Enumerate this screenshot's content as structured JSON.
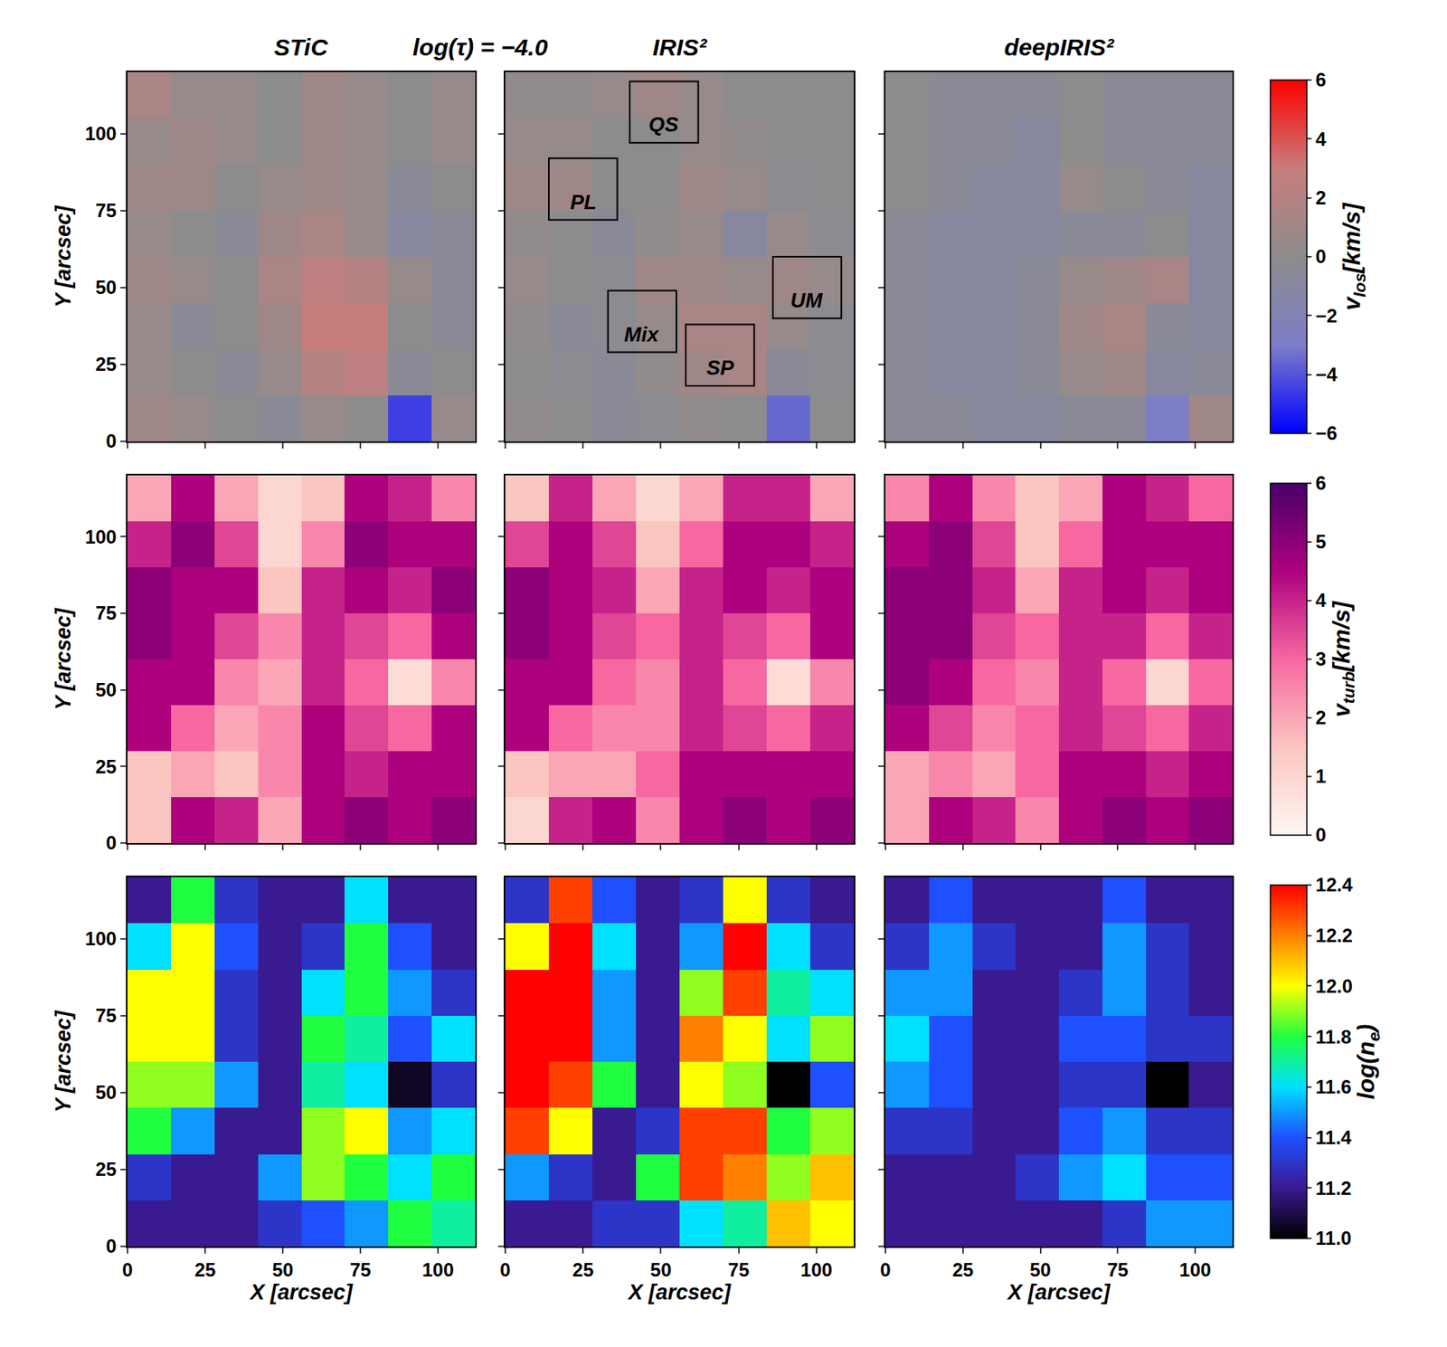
{
  "chart_data": {
    "type": "heatmap",
    "column_titles": [
      "STiC",
      "IRIS²",
      "deepIRIS²"
    ],
    "subtitle": "log(τ) = −4.0",
    "xlabel": "X [arcsec]",
    "ylabel": "Y [arcsec]",
    "xlim": [
      0,
      112
    ],
    "ylim": [
      0,
      120
    ],
    "xticks": [
      0,
      25,
      50,
      75,
      100
    ],
    "yticks": [
      0,
      25,
      50,
      75,
      100
    ],
    "x_edges": [
      0,
      14,
      28,
      42,
      56,
      70,
      84,
      98,
      112
    ],
    "y_edges": [
      0,
      15,
      30,
      45,
      60,
      75,
      90,
      105,
      120
    ],
    "rows": [
      {
        "colorbar_title": {
          "main": "v",
          "sub": "los",
          "rest": "[km/s]"
        },
        "colorbar_range": [
          -6,
          6
        ],
        "colorbar_ticks": [
          {
            "value": -6,
            "label": "−6"
          },
          {
            "value": -4,
            "label": "−4"
          },
          {
            "value": -2,
            "label": "−2"
          },
          0,
          2,
          4,
          6
        ],
        "colors": [
          "#0000ff",
          "#7d7dc8",
          "#8c8c8c",
          "#c87d7d",
          "#ff0000"
        ],
        "panels": [
          [
            [
              1.0,
              0.5,
              0.0,
              -0.5,
              0.5,
              0.0,
              -4.5,
              0.5
            ],
            [
              0.5,
              0.0,
              -0.5,
              0.5,
              2.0,
              2.5,
              -0.5,
              0.0
            ],
            [
              0.5,
              -0.5,
              0.0,
              1.0,
              3.0,
              3.0,
              0.0,
              -0.5
            ],
            [
              1.0,
              0.5,
              0.0,
              1.5,
              2.5,
              2.0,
              0.5,
              -0.5
            ],
            [
              0.5,
              0.0,
              -0.5,
              1.0,
              1.5,
              0.5,
              -1.0,
              -0.5
            ],
            [
              1.0,
              1.0,
              0.0,
              0.5,
              1.0,
              0.5,
              -0.5,
              0.0
            ],
            [
              0.5,
              1.0,
              0.5,
              0.0,
              1.0,
              0.5,
              0.0,
              0.5
            ],
            [
              1.5,
              0.5,
              0.5,
              0.0,
              1.0,
              0.5,
              0.0,
              0.5
            ]
          ],
          [
            [
              0.3,
              0.0,
              -0.5,
              -0.3,
              0.3,
              0.0,
              -3.5,
              0.0
            ],
            [
              0.0,
              -0.3,
              -0.5,
              0.3,
              1.0,
              1.5,
              -0.5,
              -0.3
            ],
            [
              0.3,
              -0.5,
              -0.3,
              0.5,
              1.5,
              1.5,
              0.5,
              -0.3
            ],
            [
              0.5,
              0.0,
              -0.3,
              1.0,
              1.0,
              0.5,
              1.0,
              0.5
            ],
            [
              0.3,
              0.0,
              -0.5,
              0.3,
              0.5,
              -1.0,
              0.5,
              -0.3
            ],
            [
              1.0,
              1.0,
              0.0,
              0.0,
              1.0,
              0.5,
              -0.3,
              0.0
            ],
            [
              0.5,
              0.5,
              0.0,
              0.0,
              0.5,
              0.3,
              0.0,
              0.0
            ],
            [
              0.3,
              0.3,
              0.5,
              1.0,
              0.5,
              0.0,
              0.0,
              0.0
            ]
          ],
          [
            [
              -0.5,
              -0.5,
              -1.0,
              -1.0,
              -0.5,
              -0.5,
              -3.0,
              1.0
            ],
            [
              -0.5,
              -1.0,
              -1.0,
              -0.5,
              0.5,
              1.0,
              -1.0,
              -0.5
            ],
            [
              -0.5,
              -1.0,
              -1.0,
              -0.5,
              1.0,
              1.5,
              -0.5,
              -1.0
            ],
            [
              -0.5,
              -1.0,
              -1.0,
              -0.5,
              0.5,
              1.0,
              1.5,
              -1.0
            ],
            [
              -0.5,
              -1.0,
              -1.0,
              -1.0,
              -0.5,
              -0.5,
              0.0,
              -1.0
            ],
            [
              0.0,
              -0.5,
              -1.0,
              -1.0,
              0.5,
              0.0,
              -0.5,
              -1.0
            ],
            [
              0.0,
              -0.5,
              -0.5,
              -1.0,
              0.0,
              -0.5,
              -0.5,
              -0.5
            ],
            [
              0.0,
              -0.5,
              -0.5,
              -0.5,
              0.0,
              -0.5,
              -0.5,
              -0.5
            ]
          ]
        ]
      },
      {
        "colorbar_title": {
          "main": "v",
          "sub": "turb",
          "rest": "[km/s]"
        },
        "colorbar_range": [
          0,
          6
        ],
        "colorbar_ticks": [
          0,
          1,
          2,
          3,
          4,
          5,
          6
        ],
        "colors": [
          "#fff7f3",
          "#fbc5c0",
          "#f768a1",
          "#ae017e",
          "#49006a"
        ],
        "panels": [
          [
            [
              1.5,
              4.5,
              4.0,
              2.0,
              4.5,
              5.0,
              4.5,
              5.0
            ],
            [
              1.5,
              2.0,
              1.5,
              2.5,
              4.5,
              4.0,
              4.5,
              4.5
            ],
            [
              4.5,
              3.0,
              2.0,
              2.5,
              4.5,
              3.5,
              3.0,
              4.5
            ],
            [
              4.5,
              4.5,
              2.5,
              2.0,
              4.0,
              3.0,
              0.8,
              2.5
            ],
            [
              5.0,
              4.5,
              3.5,
              2.5,
              4.0,
              3.5,
              3.0,
              4.5
            ],
            [
              5.0,
              4.5,
              4.5,
              1.5,
              4.0,
              4.5,
              4.0,
              5.0
            ],
            [
              4.0,
              5.0,
              3.5,
              1.0,
              2.5,
              5.0,
              4.5,
              4.5
            ],
            [
              2.0,
              4.5,
              2.0,
              1.0,
              1.5,
              4.5,
              4.0,
              2.5
            ]
          ],
          [
            [
              1.0,
              4.0,
              4.5,
              2.5,
              4.5,
              5.0,
              4.5,
              5.0
            ],
            [
              1.5,
              2.0,
              2.0,
              3.0,
              4.5,
              4.5,
              4.5,
              4.5
            ],
            [
              4.5,
              3.0,
              2.5,
              2.5,
              4.0,
              3.5,
              3.0,
              4.0
            ],
            [
              4.5,
              4.5,
              3.0,
              2.5,
              4.0,
              3.0,
              0.8,
              2.5
            ],
            [
              5.0,
              4.5,
              3.5,
              3.0,
              4.0,
              3.5,
              3.0,
              4.5
            ],
            [
              5.0,
              4.5,
              4.0,
              2.0,
              4.0,
              4.5,
              4.0,
              4.5
            ],
            [
              3.5,
              4.5,
              3.5,
              1.5,
              3.0,
              4.5,
              4.5,
              4.0
            ],
            [
              1.5,
              4.0,
              2.0,
              1.0,
              2.0,
              4.0,
              4.0,
              2.0
            ]
          ],
          [
            [
              2.0,
              4.5,
              4.0,
              2.5,
              4.5,
              5.0,
              4.5,
              5.0
            ],
            [
              2.0,
              2.5,
              2.0,
              3.0,
              4.5,
              4.5,
              4.0,
              4.5
            ],
            [
              4.5,
              3.5,
              2.5,
              3.0,
              4.0,
              3.5,
              3.0,
              4.0
            ],
            [
              5.0,
              4.5,
              3.0,
              2.5,
              4.0,
              3.0,
              1.0,
              3.0
            ],
            [
              5.0,
              5.0,
              3.5,
              3.0,
              4.0,
              4.0,
              3.0,
              4.0
            ],
            [
              5.0,
              5.0,
              4.0,
              2.0,
              4.0,
              4.5,
              4.0,
              4.5
            ],
            [
              4.5,
              5.0,
              3.5,
              1.5,
              3.0,
              4.5,
              4.5,
              4.5
            ],
            [
              2.5,
              4.5,
              2.5,
              1.5,
              2.0,
              4.5,
              4.0,
              3.0
            ]
          ]
        ]
      },
      {
        "colorbar_title": {
          "main": "log(n",
          "sub": "e",
          "rest": ")"
        },
        "colorbar_range": [
          11.0,
          12.4
        ],
        "colorbar_ticks": [
          {
            "value": 11.0,
            "label": "11.0"
          },
          11.2,
          11.4,
          11.6,
          11.8,
          {
            "value": 12.0,
            "label": "12.0"
          },
          12.2,
          12.4
        ],
        "colors": [
          "#000000",
          "#3a1a90",
          "#1e50ff",
          "#00e0ff",
          "#20ff40",
          "#ffff00",
          "#ff8000",
          "#ff0000"
        ],
        "panels": [
          [
            [
              11.2,
              11.2,
              11.2,
              11.3,
              11.4,
              11.5,
              11.8,
              11.7
            ],
            [
              11.3,
              11.2,
              11.2,
              11.5,
              11.9,
              11.8,
              11.6,
              11.8
            ],
            [
              11.8,
              11.5,
              11.2,
              11.2,
              11.9,
              12.0,
              11.5,
              11.6
            ],
            [
              11.9,
              11.9,
              11.5,
              11.2,
              11.7,
              11.6,
              11.05,
              11.3
            ],
            [
              12.0,
              12.0,
              11.3,
              11.2,
              11.8,
              11.7,
              11.4,
              11.6
            ],
            [
              12.0,
              12.0,
              11.3,
              11.2,
              11.6,
              11.8,
              11.5,
              11.3
            ],
            [
              11.6,
              12.0,
              11.4,
              11.2,
              11.3,
              11.8,
              11.4,
              11.2
            ],
            [
              11.2,
              11.8,
              11.3,
              11.2,
              11.2,
              11.6,
              11.2,
              11.2
            ]
          ],
          [
            [
              11.2,
              11.2,
              11.3,
              11.3,
              11.6,
              11.7,
              12.1,
              12.0
            ],
            [
              11.5,
              11.3,
              11.2,
              11.8,
              12.3,
              12.2,
              11.9,
              12.1
            ],
            [
              12.3,
              12.0,
              11.2,
              11.3,
              12.3,
              12.3,
              11.8,
              11.9
            ],
            [
              12.4,
              12.3,
              11.8,
              11.2,
              12.0,
              11.9,
              11.0,
              11.4
            ],
            [
              12.4,
              12.4,
              11.5,
              11.2,
              12.2,
              12.0,
              11.6,
              11.9
            ],
            [
              12.4,
              12.4,
              11.5,
              11.2,
              11.9,
              12.3,
              11.7,
              11.6
            ],
            [
              12.0,
              12.4,
              11.6,
              11.2,
              11.5,
              12.4,
              11.6,
              11.3
            ],
            [
              11.3,
              12.3,
              11.4,
              11.2,
              11.3,
              12.0,
              11.3,
              11.2
            ]
          ],
          [
            [
              11.2,
              11.2,
              11.2,
              11.2,
              11.2,
              11.3,
              11.5,
              11.5
            ],
            [
              11.2,
              11.2,
              11.2,
              11.3,
              11.5,
              11.6,
              11.4,
              11.4
            ],
            [
              11.3,
              11.3,
              11.2,
              11.2,
              11.4,
              11.5,
              11.3,
              11.3
            ],
            [
              11.5,
              11.4,
              11.2,
              11.2,
              11.3,
              11.3,
              11.0,
              11.2
            ],
            [
              11.6,
              11.4,
              11.2,
              11.2,
              11.4,
              11.4,
              11.3,
              11.3
            ],
            [
              11.5,
              11.5,
              11.2,
              11.2,
              11.3,
              11.5,
              11.3,
              11.2
            ],
            [
              11.3,
              11.5,
              11.3,
              11.2,
              11.2,
              11.5,
              11.3,
              11.2
            ],
            [
              11.2,
              11.4,
              11.2,
              11.2,
              11.2,
              11.4,
              11.2,
              11.2
            ]
          ]
        ]
      }
    ],
    "boxes": {
      "row": 0,
      "column": 1,
      "items": [
        {
          "label": "QS",
          "x": [
            40,
            62
          ],
          "y": [
            97,
            117
          ]
        },
        {
          "label": "PL",
          "x": [
            14,
            36
          ],
          "y": [
            72,
            92
          ]
        },
        {
          "label": "Mix",
          "x": [
            33,
            55
          ],
          "y": [
            29,
            49
          ]
        },
        {
          "label": "SP",
          "x": [
            58,
            80
          ],
          "y": [
            18,
            38
          ]
        },
        {
          "label": "UM",
          "x": [
            86,
            108
          ],
          "y": [
            40,
            60
          ]
        }
      ]
    }
  }
}
